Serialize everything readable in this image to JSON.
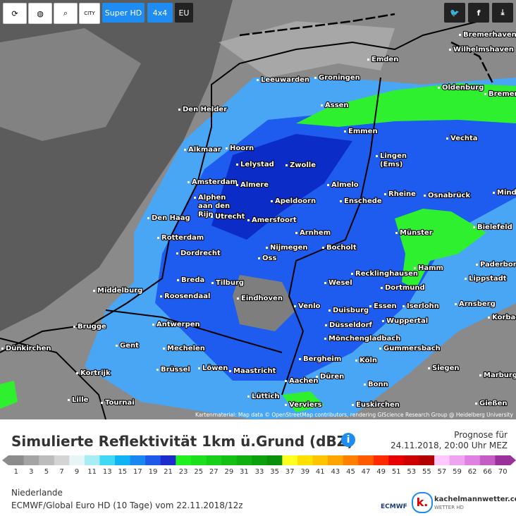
{
  "toolbar": {
    "city": "CITY",
    "super_hd": "Super HD",
    "grid": "4x4",
    "region": "EU"
  },
  "map": {
    "attribution": "Kartenmaterial: Map data © OpenStreetMap contributors, rendering GIScience Research Group @ Heidelberg University",
    "cities": [
      [
        "Bremerhaven"
      ],
      [
        "Wilhelmshaven"
      ],
      [
        "Emden"
      ],
      [
        "Leeuwarden"
      ],
      [
        "Groningen"
      ],
      [
        "Oldenburg"
      ],
      [
        "Bremen"
      ],
      [
        "Den Helder"
      ],
      [
        "Assen"
      ],
      [
        "Emmen"
      ],
      [
        "Vechta"
      ],
      [
        "Alkmaar"
      ],
      [
        "Hoorn"
      ],
      [
        "Lingen",
        "(Ems)"
      ],
      [
        "Lelystad"
      ],
      [
        "Zwolle"
      ],
      [
        "Amsterdam"
      ],
      [
        "Almere"
      ],
      [
        "Almelo"
      ],
      [
        "Rheine"
      ],
      [
        "Osnabrück"
      ],
      [
        "Minden"
      ],
      [
        "Alphen",
        "aan den",
        "Rijn"
      ],
      [
        "Apeldoorn"
      ],
      [
        "Enschede"
      ],
      [
        "Den Haag"
      ],
      [
        "Utrecht"
      ],
      [
        "Amersfoort"
      ],
      [
        "Münster"
      ],
      [
        "Bielefeld"
      ],
      [
        "Rotterdam"
      ],
      [
        "Arnhem"
      ],
      [
        "Nijmegen"
      ],
      [
        "Bocholt"
      ],
      [
        "Dordrecht"
      ],
      [
        "Oss"
      ],
      [
        "Hamm"
      ],
      [
        "Paderborn"
      ],
      [
        "Recklinghausen"
      ],
      [
        "Lippstadt"
      ],
      [
        "Middelburg"
      ],
      [
        "Breda"
      ],
      [
        "Tilburg"
      ],
      [
        "Wesel"
      ],
      [
        "Dortmund"
      ],
      [
        "Roosendaal"
      ],
      [
        "Eindhoven"
      ],
      [
        "Venlo"
      ],
      [
        "Duisburg"
      ],
      [
        "Essen"
      ],
      [
        "Iserlohn"
      ],
      [
        "Arnsberg"
      ],
      [
        "Brugge"
      ],
      [
        "Antwerpen"
      ],
      [
        "Düsseldorf"
      ],
      [
        "Wuppertal"
      ],
      [
        "Korbach"
      ],
      [
        "Gent"
      ],
      [
        "Mechelen"
      ],
      [
        "Mönchengladbach"
      ],
      [
        "Gummersbach"
      ],
      [
        "Dünkirchen"
      ],
      [
        "Kortrijk"
      ],
      [
        "Brüssel"
      ],
      [
        "Löwen"
      ],
      [
        "Maastricht"
      ],
      [
        "Bergheim"
      ],
      [
        "Köln"
      ],
      [
        "Siegen"
      ],
      [
        "Marburg"
      ],
      [
        "Aachen"
      ],
      [
        "Düren"
      ],
      [
        "Bonn"
      ],
      [
        "Lille"
      ],
      [
        "Tournai"
      ],
      [
        "Lüttich"
      ],
      [
        "Verviers"
      ],
      [
        "Euskirchen"
      ],
      [
        "Gießen"
      ]
    ]
  },
  "footer": {
    "title": "Simulierte Reflektivität 1km ü.Grund (dBZ)",
    "forecast_label": "Prognose für",
    "forecast_time": "24.11.2018, 20:00 Uhr MEZ",
    "legend": [
      "1",
      "3",
      "5",
      "7",
      "9",
      "11",
      "13",
      "15",
      "17",
      "19",
      "21",
      "23",
      "25",
      "27",
      "29",
      "31",
      "33",
      "35",
      "37",
      "39",
      "41",
      "43",
      "45",
      "47",
      "49",
      "51",
      "53",
      "55",
      "57",
      "59",
      "62",
      "66",
      "70"
    ],
    "region": "Niederlande",
    "model": "ECMWF/Global Euro HD (10 Tage) vom 22.11.2018/12z",
    "ecmwf": "ECMWF",
    "site": "kachelmannwetter.com",
    "site_sub": "WETTER HD"
  }
}
